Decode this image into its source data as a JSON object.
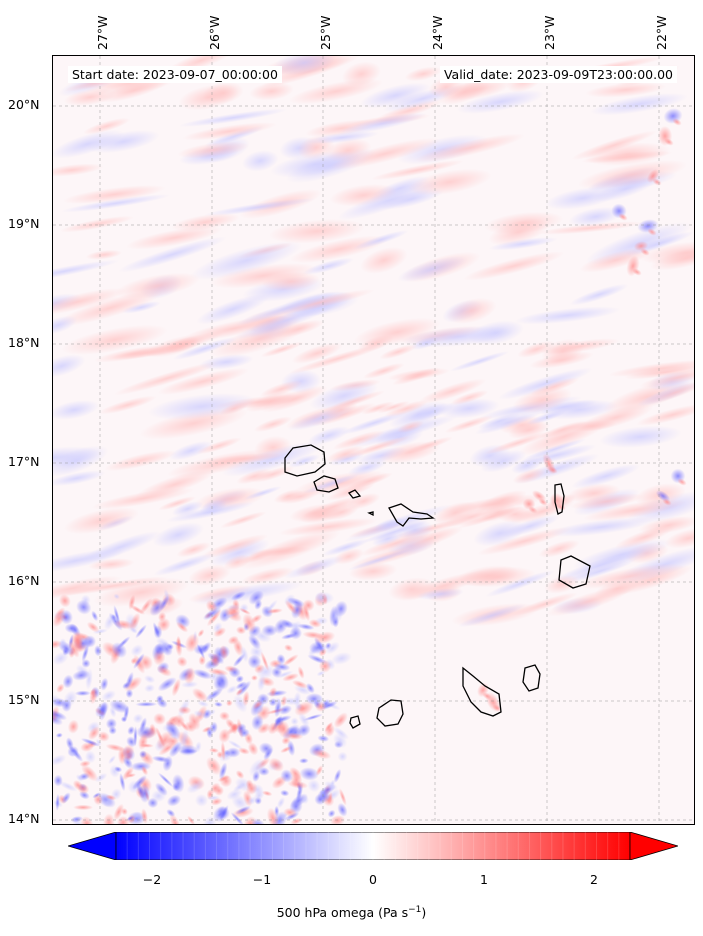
{
  "header": {
    "start_date": "Start date: 2023-09-07_00:00:00",
    "valid_date": "Valid_date: 2023-09-09T23:00:00.00"
  },
  "axes": {
    "lat_labels": [
      "20°N",
      "19°N",
      "18°N",
      "17°N",
      "16°N",
      "15°N",
      "14°N"
    ],
    "lon_labels": [
      "27°W",
      "26°W",
      "25°W",
      "24°W",
      "23°W",
      "22°W"
    ]
  },
  "colorbar": {
    "title_prefix": "500 hPa omega (Pa s",
    "title_exponent": "−1",
    "title_suffix": ")",
    "tick_labels": [
      "−2",
      "−1",
      "0",
      "1",
      "2"
    ],
    "colors": {
      "negative": "#0000ff",
      "zero": "#ffffff",
      "positive": "#ff0000"
    }
  },
  "map": {
    "features": [
      "cape-verde-islands-coastline"
    ]
  }
}
